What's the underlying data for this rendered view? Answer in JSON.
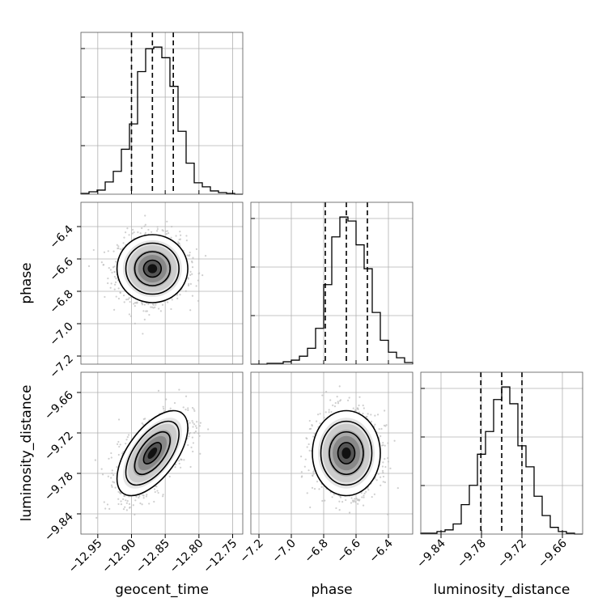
{
  "chart_data": {
    "type": "corner",
    "parameters": [
      "geocent_time",
      "phase",
      "luminosity_distance"
    ],
    "axes": {
      "geocent_time": {
        "label": "geocent_time",
        "range": [
          -12.975,
          -12.735
        ],
        "ticks": [
          -12.95,
          -12.9,
          -12.85,
          -12.8,
          -12.75
        ],
        "tick_labels": [
          "−12.95",
          "−12.90",
          "−12.85",
          "−12.80",
          "−12.75"
        ],
        "quantiles": [
          -12.9,
          -12.869,
          -12.838
        ],
        "hist_bins": [
          -12.975,
          -12.963,
          -12.951,
          -12.939,
          -12.927,
          -12.915,
          -12.903,
          -12.891,
          -12.879,
          -12.867,
          -12.855,
          -12.843,
          -12.831,
          -12.819,
          -12.807,
          -12.795,
          -12.783,
          -12.771,
          -12.759,
          -12.747,
          -12.735
        ],
        "hist_counts": [
          1,
          3,
          5,
          15,
          28,
          55,
          86,
          150,
          178,
          180,
          167,
          132,
          77,
          38,
          14,
          9,
          4,
          2,
          1,
          0
        ]
      },
      "phase": {
        "label": "phase",
        "range": [
          -7.25,
          -6.25
        ],
        "ticks": [
          -7.2,
          -7.0,
          -6.8,
          -6.6,
          -6.4
        ],
        "tick_labels": [
          "−7.2",
          "−7.0",
          "−6.8",
          "−6.6",
          "−6.4"
        ],
        "quantiles": [
          -6.79,
          -6.66,
          -6.53
        ],
        "hist_bins": [
          -7.25,
          -7.2,
          -7.15,
          -7.1,
          -7.05,
          -7.0,
          -6.95,
          -6.9,
          -6.85,
          -6.8,
          -6.75,
          -6.7,
          -6.65,
          -6.6,
          -6.55,
          -6.5,
          -6.45,
          -6.4,
          -6.35,
          -6.3,
          -6.25
        ],
        "hist_counts": [
          0,
          0,
          1,
          1,
          3,
          5,
          10,
          20,
          45,
          100,
          160,
          185,
          180,
          150,
          120,
          65,
          30,
          15,
          8,
          2
        ]
      },
      "luminosity_distance": {
        "label": "luminosity_distance",
        "range": [
          -9.87,
          -9.63
        ],
        "ticks": [
          -9.84,
          -9.78,
          -9.72,
          -9.66
        ],
        "tick_labels": [
          "−9.84",
          "−9.78",
          "−9.72",
          "−9.66"
        ],
        "quantiles": [
          -9.781,
          -9.75,
          -9.72
        ],
        "hist_bins": [
          -9.87,
          -9.858,
          -9.846,
          -9.834,
          -9.822,
          -9.81,
          -9.798,
          -9.786,
          -9.774,
          -9.762,
          -9.75,
          -9.738,
          -9.726,
          -9.714,
          -9.702,
          -9.69,
          -9.678,
          -9.666,
          -9.654,
          -9.642,
          -9.63
        ],
        "hist_counts": [
          1,
          1,
          3,
          5,
          12,
          35,
          58,
          95,
          122,
          160,
          175,
          155,
          105,
          80,
          45,
          22,
          8,
          3,
          1,
          0
        ]
      }
    },
    "pairs": [
      {
        "x": "geocent_time",
        "y": "phase",
        "mean": [
          -12.869,
          -6.66
        ],
        "std": [
          0.025,
          0.1
        ],
        "corr": 0.0
      },
      {
        "x": "geocent_time",
        "y": "luminosity_distance",
        "mean": [
          -12.869,
          -9.75
        ],
        "std": [
          0.025,
          0.03
        ],
        "corr": 0.6
      },
      {
        "x": "phase",
        "y": "luminosity_distance",
        "mean": [
          -6.66,
          -9.75
        ],
        "std": [
          0.1,
          0.03
        ],
        "corr": 0.0
      }
    ],
    "contour_levels_sigma": [
      0.5,
      1.0,
      1.5,
      2.0
    ],
    "grid": true,
    "colors": {
      "line": "#000000",
      "grid": "#b0b0b0",
      "points": "#bbbbbb"
    }
  }
}
